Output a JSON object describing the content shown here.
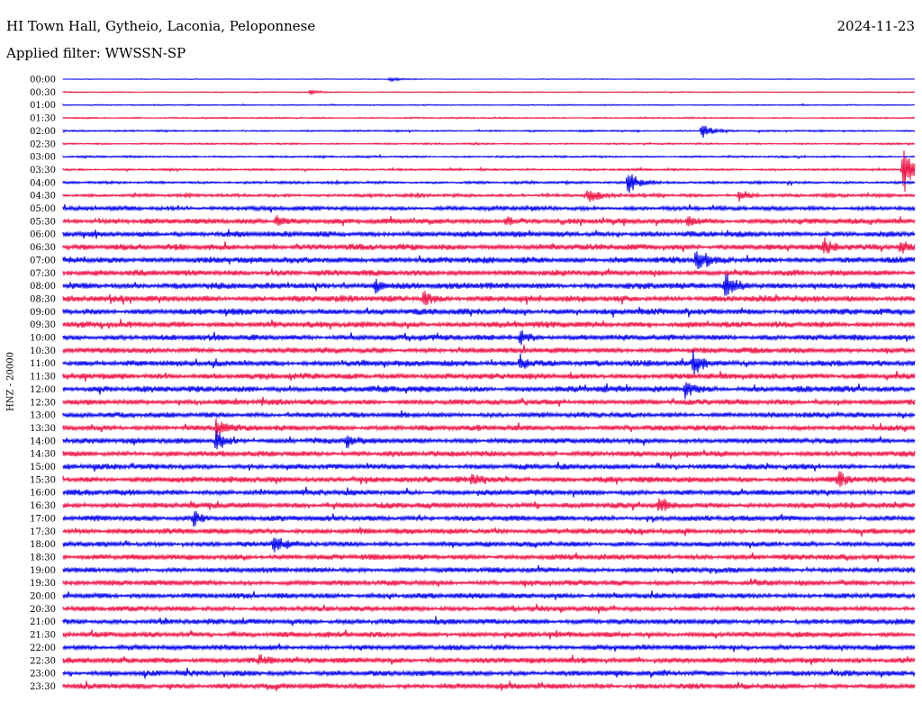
{
  "header": {
    "title": "HI Town Hall, Gytheio, Laconia, Peloponnese",
    "date": "2024-11-23",
    "filter": "Applied filter: WWSSN-SP"
  },
  "colors": {
    "even": "#0000ee",
    "odd": "#ee1144"
  },
  "chart_data": {
    "type": "line",
    "title": "HI Town Hall, Gytheio, Laconia, Peloponnese",
    "subtitle": "Applied filter: WWSSN-SP",
    "xlabel": "",
    "ylabel": "HNZ - 20000",
    "grid": false,
    "legend": "none",
    "rows": [
      "00:00",
      "00:30",
      "01:00",
      "01:30",
      "02:00",
      "02:30",
      "03:00",
      "03:30",
      "04:00",
      "04:30",
      "05:00",
      "05:30",
      "06:00",
      "06:30",
      "07:00",
      "07:30",
      "08:00",
      "08:30",
      "09:00",
      "09:30",
      "10:00",
      "10:30",
      "11:00",
      "11:30",
      "12:00",
      "12:30",
      "13:00",
      "13:30",
      "14:00",
      "14:30",
      "15:00",
      "15:30",
      "16:00",
      "16:30",
      "17:00",
      "17:30",
      "18:00",
      "18:30",
      "19:00",
      "19:30",
      "20:00",
      "20:30",
      "21:00",
      "21:30",
      "22:00",
      "22:30",
      "23:00",
      "23:30"
    ],
    "noise_level": [
      0.3,
      0.4,
      0.5,
      0.6,
      0.7,
      0.7,
      0.8,
      0.9,
      1.1,
      1.4,
      1.8,
      2.2,
      2.4,
      2.6,
      2.6,
      2.5,
      2.7,
      2.6,
      2.6,
      2.5,
      2.4,
      2.4,
      2.5,
      2.5,
      2.6,
      2.3,
      2.2,
      2.3,
      2.3,
      2.4,
      2.3,
      2.5,
      2.4,
      2.4,
      2.3,
      2.3,
      2.2,
      2.3,
      2.2,
      2.2,
      2.3,
      2.2,
      2.3,
      2.3,
      2.2,
      2.4,
      2.3,
      2.3
    ],
    "events": [
      {
        "row": "00:00",
        "minute": 11.5,
        "amp": 3
      },
      {
        "row": "00:30",
        "minute": 8.7,
        "amp": 3
      },
      {
        "row": "02:00",
        "minute": 22.5,
        "amp": 10
      },
      {
        "row": "03:30",
        "minute": 29.6,
        "amp": 27
      },
      {
        "row": "04:00",
        "minute": 19.9,
        "amp": 18
      },
      {
        "row": "04:30",
        "minute": 18.5,
        "amp": 10
      },
      {
        "row": "04:30",
        "minute": 23.8,
        "amp": 8
      },
      {
        "row": "05:30",
        "minute": 7.5,
        "amp": 6
      },
      {
        "row": "05:30",
        "minute": 15.6,
        "amp": 6
      },
      {
        "row": "05:30",
        "minute": 22.0,
        "amp": 7
      },
      {
        "row": "06:30",
        "minute": 26.8,
        "amp": 7
      },
      {
        "row": "06:30",
        "minute": 29.5,
        "amp": 7
      },
      {
        "row": "07:00",
        "minute": 22.3,
        "amp": 16
      },
      {
        "row": "08:00",
        "minute": 11.0,
        "amp": 8
      },
      {
        "row": "08:00",
        "minute": 23.3,
        "amp": 16
      },
      {
        "row": "08:30",
        "minute": 12.7,
        "amp": 7
      },
      {
        "row": "10:00",
        "minute": 16.1,
        "amp": 8
      },
      {
        "row": "11:00",
        "minute": 16.1,
        "amp": 9
      },
      {
        "row": "11:00",
        "minute": 22.2,
        "amp": 14
      },
      {
        "row": "12:00",
        "minute": 21.9,
        "amp": 10
      },
      {
        "row": "13:30",
        "minute": 5.4,
        "amp": 10
      },
      {
        "row": "14:00",
        "minute": 5.4,
        "amp": 12
      },
      {
        "row": "14:00",
        "minute": 10.0,
        "amp": 7
      },
      {
        "row": "15:30",
        "minute": 14.4,
        "amp": 6
      },
      {
        "row": "15:30",
        "minute": 27.3,
        "amp": 8
      },
      {
        "row": "16:30",
        "minute": 21.0,
        "amp": 8
      },
      {
        "row": "17:00",
        "minute": 4.6,
        "amp": 8
      },
      {
        "row": "18:00",
        "minute": 7.4,
        "amp": 12
      },
      {
        "row": "22:30",
        "minute": 6.9,
        "amp": 5
      }
    ]
  }
}
